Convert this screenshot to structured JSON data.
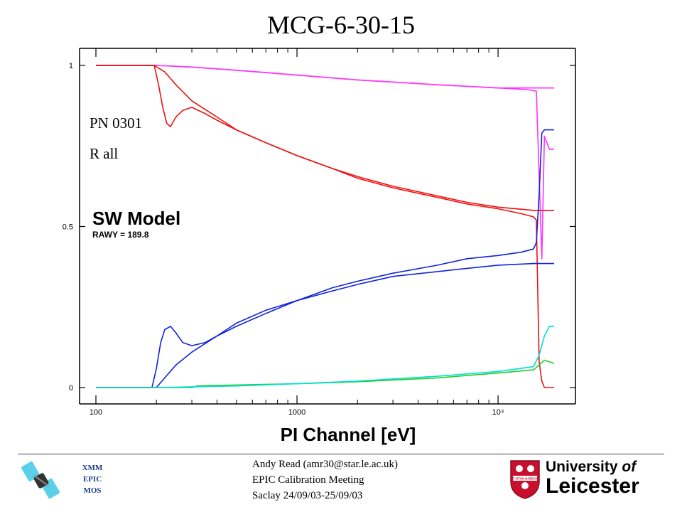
{
  "slide": {
    "title": "MCG-6-30-15",
    "annotations": [
      "PN 0301",
      "R all"
    ],
    "model_label": "SW Model",
    "model_sublabel": "RAWY = 189.8"
  },
  "chart_data": {
    "type": "line",
    "title": "",
    "xlabel": "PI Channel [eV]",
    "ylabel": "",
    "xscale": "log",
    "xlim": [
      100,
      19000
    ],
    "ylim": [
      0,
      1.05
    ],
    "x_ticks": [
      {
        "value": 100,
        "label": "100"
      },
      {
        "value": 1000,
        "label": "1000"
      },
      {
        "value": 10000,
        "label": "10⁴"
      }
    ],
    "y_ticks": [
      {
        "value": 0,
        "label": "0"
      },
      {
        "value": 0.5,
        "label": "0.5"
      },
      {
        "value": 1,
        "label": "1"
      }
    ],
    "grid": false,
    "legend": "none",
    "series": [
      {
        "color": "#ff33ff",
        "data": [
          [
            100,
            1.0
          ],
          [
            200,
            1.0
          ],
          [
            300,
            0.995
          ],
          [
            500,
            0.985
          ],
          [
            1000,
            0.97
          ],
          [
            2000,
            0.955
          ],
          [
            5000,
            0.94
          ],
          [
            10000,
            0.93
          ],
          [
            14000,
            0.925
          ],
          [
            15500,
            0.92
          ],
          [
            16500,
            0.4
          ],
          [
            17000,
            0.78
          ],
          [
            18000,
            0.74
          ],
          [
            19000,
            0.74
          ]
        ]
      },
      {
        "color": "#ff33ff",
        "data": [
          [
            100,
            1.0
          ],
          [
            200,
            1.0
          ],
          [
            300,
            0.995
          ],
          [
            500,
            0.985
          ],
          [
            1000,
            0.97
          ],
          [
            2000,
            0.955
          ],
          [
            5000,
            0.94
          ],
          [
            10000,
            0.93
          ],
          [
            19000,
            0.93
          ]
        ]
      },
      {
        "color": "#ee1111",
        "data": [
          [
            100,
            1.0
          ],
          [
            195,
            1.0
          ],
          [
            205,
            0.94
          ],
          [
            215,
            0.87
          ],
          [
            225,
            0.82
          ],
          [
            235,
            0.81
          ],
          [
            250,
            0.84
          ],
          [
            270,
            0.86
          ],
          [
            300,
            0.87
          ],
          [
            350,
            0.85
          ],
          [
            400,
            0.83
          ],
          [
            500,
            0.8
          ],
          [
            700,
            0.76
          ],
          [
            1000,
            0.72
          ],
          [
            1500,
            0.68
          ],
          [
            2000,
            0.65
          ],
          [
            3000,
            0.62
          ],
          [
            5000,
            0.59
          ],
          [
            7000,
            0.57
          ],
          [
            10000,
            0.555
          ],
          [
            13000,
            0.54
          ],
          [
            15000,
            0.53
          ],
          [
            15500,
            0.52
          ],
          [
            16000,
            0.08
          ],
          [
            16500,
            0.02
          ],
          [
            17000,
            0.0
          ],
          [
            19000,
            0.0
          ]
        ]
      },
      {
        "color": "#ee1111",
        "data": [
          [
            100,
            1.0
          ],
          [
            195,
            1.0
          ],
          [
            220,
            0.98
          ],
          [
            250,
            0.94
          ],
          [
            300,
            0.89
          ],
          [
            400,
            0.84
          ],
          [
            500,
            0.8
          ],
          [
            700,
            0.76
          ],
          [
            1000,
            0.72
          ],
          [
            1500,
            0.68
          ],
          [
            2000,
            0.655
          ],
          [
            3000,
            0.625
          ],
          [
            5000,
            0.595
          ],
          [
            7000,
            0.575
          ],
          [
            10000,
            0.56
          ],
          [
            15000,
            0.55
          ],
          [
            19000,
            0.55
          ]
        ]
      },
      {
        "color": "#1122dd",
        "data": [
          [
            100,
            0.0
          ],
          [
            190,
            0.0
          ],
          [
            200,
            0.06
          ],
          [
            210,
            0.14
          ],
          [
            220,
            0.18
          ],
          [
            235,
            0.19
          ],
          [
            250,
            0.17
          ],
          [
            270,
            0.14
          ],
          [
            300,
            0.13
          ],
          [
            350,
            0.14
          ],
          [
            400,
            0.16
          ],
          [
            500,
            0.19
          ],
          [
            700,
            0.23
          ],
          [
            1000,
            0.27
          ],
          [
            1500,
            0.31
          ],
          [
            2000,
            0.33
          ],
          [
            3000,
            0.355
          ],
          [
            5000,
            0.38
          ],
          [
            7000,
            0.4
          ],
          [
            10000,
            0.41
          ],
          [
            13000,
            0.42
          ],
          [
            15000,
            0.43
          ],
          [
            15500,
            0.45
          ],
          [
            16000,
            0.6
          ],
          [
            16500,
            0.79
          ],
          [
            17000,
            0.8
          ],
          [
            18000,
            0.8
          ],
          [
            19000,
            0.8
          ]
        ]
      },
      {
        "color": "#1122dd",
        "data": [
          [
            100,
            0.0
          ],
          [
            200,
            0.0
          ],
          [
            220,
            0.03
          ],
          [
            250,
            0.07
          ],
          [
            300,
            0.11
          ],
          [
            400,
            0.16
          ],
          [
            500,
            0.2
          ],
          [
            700,
            0.24
          ],
          [
            1000,
            0.27
          ],
          [
            1500,
            0.3
          ],
          [
            2000,
            0.32
          ],
          [
            3000,
            0.345
          ],
          [
            5000,
            0.36
          ],
          [
            7000,
            0.37
          ],
          [
            10000,
            0.38
          ],
          [
            15000,
            0.385
          ],
          [
            19000,
            0.385
          ]
        ]
      },
      {
        "color": "#22cc22",
        "data": [
          [
            100,
            0.0
          ],
          [
            300,
            0.0
          ],
          [
            320,
            0.005
          ],
          [
            500,
            0.008
          ],
          [
            1000,
            0.012
          ],
          [
            2000,
            0.018
          ],
          [
            5000,
            0.03
          ],
          [
            10000,
            0.045
          ],
          [
            15000,
            0.055
          ],
          [
            16000,
            0.07
          ],
          [
            17000,
            0.085
          ],
          [
            18000,
            0.08
          ],
          [
            19000,
            0.075
          ]
        ]
      },
      {
        "color": "#00dddd",
        "data": [
          [
            100,
            0.0
          ],
          [
            200,
            0.0
          ],
          [
            500,
            0.005
          ],
          [
            1000,
            0.012
          ],
          [
            2000,
            0.02
          ],
          [
            5000,
            0.035
          ],
          [
            10000,
            0.05
          ],
          [
            15000,
            0.065
          ],
          [
            16000,
            0.1
          ],
          [
            17000,
            0.16
          ],
          [
            18000,
            0.19
          ],
          [
            19000,
            0.19
          ]
        ]
      }
    ]
  },
  "footer": {
    "left_lines": [
      "XMM",
      "EPIC",
      "MOS"
    ],
    "center_lines": [
      "Andy Read (amr30@star.le.ac.uk)",
      "EPIC Calibration Meeting",
      "Saclay 24/09/03-25/09/03"
    ],
    "university_line1": "University",
    "university_of": "of",
    "university_line2": "Leicester",
    "crest_motto": "UT VITAM HABEANT"
  },
  "colors": {
    "axis": "#000000",
    "footer_left_text": "#1a3d8c",
    "crest_red": "#c8102e"
  }
}
